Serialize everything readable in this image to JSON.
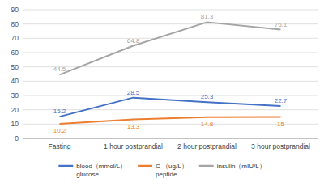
{
  "chart_data": {
    "type": "line",
    "categories": [
      "Fasting",
      "1 hour postprandial",
      "2 hour postprandial",
      "3 hour postprandial"
    ],
    "series": [
      {
        "name": "blood（mmol/L）\nglucose",
        "color": "#4472C4",
        "values": [
          15.2,
          28.5,
          25.3,
          22.7
        ]
      },
      {
        "name": "C        （ug/L）\npeptide",
        "color": "#ED7D31",
        "values": [
          10.2,
          13.3,
          14.8,
          15
        ]
      },
      {
        "name": "insulin（mIU/L）",
        "color": "#A5A5A5",
        "values": [
          44.5,
          64.8,
          81.3,
          76.1
        ]
      }
    ],
    "ylim": [
      0,
      90
    ],
    "yticks": [
      0,
      10,
      20,
      30,
      40,
      50,
      60,
      70,
      80,
      90
    ],
    "grid": true,
    "data_labels": true,
    "legend": "bottom"
  }
}
